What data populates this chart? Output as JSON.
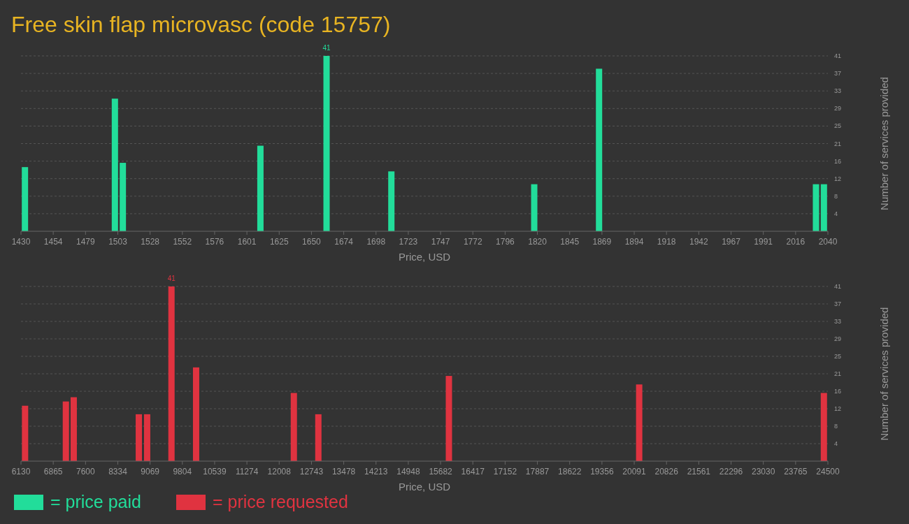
{
  "chart_data": [
    {
      "type": "bar",
      "title": "Free skin flap microvasc (code 15757)",
      "xlabel": "Price, USD",
      "ylabel": "Number of services provided",
      "x": [
        1433,
        1501,
        1507,
        1611,
        1661,
        1710,
        1818,
        1867,
        2031,
        2037
      ],
      "series": [
        {
          "name": "= price paid",
          "color": "#22dd9a",
          "values": [
            15,
            31,
            16,
            20,
            41,
            14,
            11,
            38,
            11,
            11
          ],
          "value_labels": [
            null,
            null,
            null,
            null,
            "41",
            null,
            null,
            null,
            null,
            null
          ]
        }
      ],
      "xlim": [
        1430,
        2040
      ],
      "xticks": [
        1430,
        {
          "value": 1454.4,
          "label": "1454"
        },
        {
          "value": 1478.8,
          "label": "1479"
        },
        {
          "value": 1503.2,
          "label": "1503"
        },
        {
          "value": 1527.6,
          "label": "1528"
        },
        1552,
        {
          "value": 1576.4,
          "label": "1576"
        },
        {
          "value": 1600.8,
          "label": "1601"
        },
        {
          "value": 1625.2,
          "label": "1625"
        },
        {
          "value": 1649.6,
          "label": "1650"
        },
        1674,
        {
          "value": 1698.4,
          "label": "1698"
        },
        {
          "value": 1722.8,
          "label": "1723"
        },
        {
          "value": 1747.2,
          "label": "1747"
        },
        {
          "value": 1771.6,
          "label": "1772"
        },
        1796,
        {
          "value": 1820.4,
          "label": "1820"
        },
        {
          "value": 1844.8,
          "label": "1845"
        },
        {
          "value": 1869.2,
          "label": "1869"
        },
        {
          "value": 1893.6,
          "label": "1894"
        },
        1918,
        {
          "value": 1942.4,
          "label": "1942"
        },
        {
          "value": 1966.8,
          "label": "1967"
        },
        {
          "value": 1991.2,
          "label": "1991"
        },
        {
          "value": 2015.6,
          "label": "2016"
        },
        2040
      ],
      "ylim": [
        0,
        41
      ],
      "yticks": [
        {
          "value": 4.1,
          "label": "4"
        },
        {
          "value": 8.2,
          "label": "8"
        },
        {
          "value": 12.3,
          "label": "12"
        },
        {
          "value": 16.4,
          "label": "16"
        },
        {
          "value": 20.5,
          "label": "21"
        },
        {
          "value": 24.6,
          "label": "25"
        },
        {
          "value": 28.7,
          "label": "29"
        },
        {
          "value": 32.8,
          "label": "33"
        },
        {
          "value": 36.9,
          "label": "37"
        },
        41
      ],
      "grid": "y",
      "legend": "bottom left"
    },
    {
      "type": "bar",
      "xlabel": "Price, USD",
      "ylabel": "Number of services provided",
      "x": [
        6223,
        7152,
        7331,
        8813,
        9002,
        9556,
        10117,
        12342,
        12900,
        15872,
        20204,
        24409
      ],
      "series": [
        {
          "name": "= price requested",
          "color": "#e03340",
          "values": [
            13,
            14,
            15,
            11,
            11,
            41,
            22,
            16,
            11,
            20,
            18,
            16
          ],
          "value_labels": [
            null,
            null,
            null,
            null,
            null,
            "41",
            null,
            null,
            null,
            null,
            null,
            null
          ]
        }
      ],
      "xlim": [
        6130,
        24500
      ],
      "xticks": [
        6130,
        {
          "value": 6864.8,
          "label": "6865"
        },
        {
          "value": 7599.6,
          "label": "7600"
        },
        {
          "value": 8334.4,
          "label": "8334"
        },
        {
          "value": 9069.2,
          "label": "9069"
        },
        9804,
        {
          "value": 10538.8,
          "label": "10539"
        },
        {
          "value": 11273.6,
          "label": "11274"
        },
        {
          "value": 12008.4,
          "label": "12008"
        },
        {
          "value": 12743.2,
          "label": "12743"
        },
        13478,
        {
          "value": 14212.8,
          "label": "14213"
        },
        {
          "value": 14947.6,
          "label": "14948"
        },
        {
          "value": 15682.4,
          "label": "15682"
        },
        {
          "value": 16417.2,
          "label": "16417"
        },
        17152,
        {
          "value": 17886.8,
          "label": "17887"
        },
        {
          "value": 18621.6,
          "label": "18622"
        },
        {
          "value": 19356.4,
          "label": "19356"
        },
        {
          "value": 20091.2,
          "label": "20091"
        },
        20826,
        {
          "value": 21560.8,
          "label": "21561"
        },
        {
          "value": 22295.6,
          "label": "22296"
        },
        {
          "value": 23030.4,
          "label": "23030"
        },
        {
          "value": 23765.2,
          "label": "23765"
        },
        24500
      ],
      "ylim": [
        0,
        41
      ],
      "yticks": [
        {
          "value": 4.1,
          "label": "4"
        },
        {
          "value": 8.2,
          "label": "8"
        },
        {
          "value": 12.3,
          "label": "12"
        },
        {
          "value": 16.4,
          "label": "16"
        },
        {
          "value": 20.5,
          "label": "21"
        },
        {
          "value": 24.6,
          "label": "25"
        },
        {
          "value": 28.7,
          "label": "29"
        },
        {
          "value": 32.8,
          "label": "33"
        },
        {
          "value": 36.9,
          "label": "37"
        },
        41
      ],
      "grid": "y",
      "legend": "bottom left"
    }
  ]
}
